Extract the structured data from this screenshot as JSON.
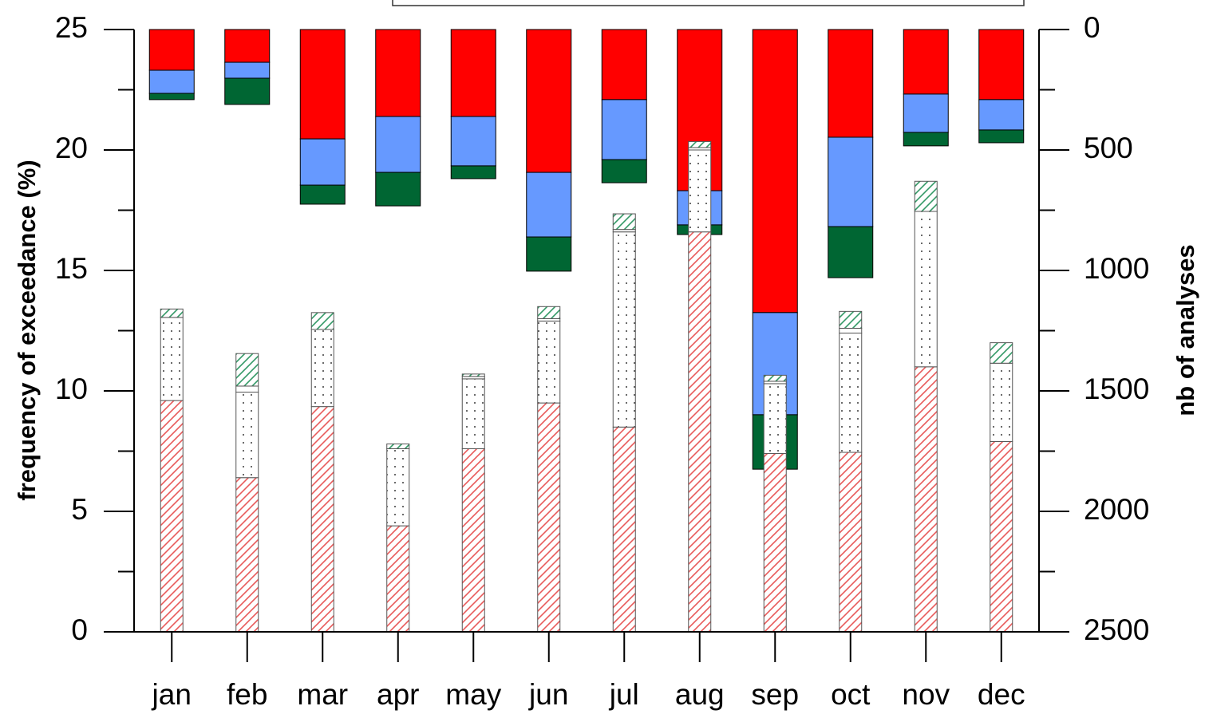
{
  "chart_data": {
    "type": "bar",
    "ylabel": "frequency of exceedance (%)",
    "y2label": "nb of analyses",
    "categories": [
      "jan",
      "feb",
      "mar",
      "apr",
      "may",
      "jun",
      "jul",
      "aug",
      "sep",
      "oct",
      "nov",
      "dec"
    ],
    "series": [
      {
        "color": "#ff0000",
        "axis": "y2",
        "values": [
          169,
          136,
          454,
          361,
          361,
          593,
          291,
          669,
          1175,
          447,
          268,
          291
        ]
      },
      {
        "color": "#6699ff",
        "axis": "y2",
        "values": [
          96,
          66,
          192,
          232,
          205,
          268,
          249,
          142,
          424,
          371,
          159,
          126
        ]
      },
      {
        "color": "#006633",
        "axis": "y2",
        "values": [
          26,
          109,
          79,
          139,
          53,
          142,
          96,
          40,
          226,
          212,
          56,
          53
        ]
      },
      {
        "color": "#e85a5a",
        "pattern": "hatch",
        "values": [
          9.6,
          6.4,
          9.35,
          4.4,
          7.6,
          9.5,
          8.5,
          16.6,
          7.4,
          7.45,
          11.0,
          7.9
        ]
      },
      {
        "color": "#000000",
        "pattern": "dots",
        "values": [
          3.45,
          3.55,
          3.2,
          3.2,
          2.9,
          3.4,
          8.1,
          3.4,
          2.9,
          4.95,
          6.45,
          3.25
        ]
      },
      {
        "color": "#000000",
        "pattern": "none",
        "values": [
          0,
          0.25,
          0,
          0,
          0.1,
          0.1,
          0.1,
          0.1,
          0.1,
          0.2,
          0,
          0
        ]
      },
      {
        "color": "#339966",
        "pattern": "hatch",
        "values": [
          0.35,
          1.35,
          0.7,
          0.2,
          0.1,
          0.5,
          0.65,
          0.25,
          0.25,
          0.7,
          1.25,
          0.85
        ]
      }
    ],
    "ylim": [
      0,
      25
    ],
    "yticks": [
      0,
      5,
      10,
      15,
      20,
      25
    ],
    "yminorticks": [
      2.5,
      7.5,
      12.5,
      17.5,
      22.5
    ],
    "y2lim": [
      0,
      2500
    ],
    "y2ticks": [
      0,
      500,
      1000,
      1500,
      2000,
      2500
    ],
    "y2minorticks": [
      250,
      750,
      1250,
      1750,
      2250
    ],
    "y2_inverted": true
  }
}
